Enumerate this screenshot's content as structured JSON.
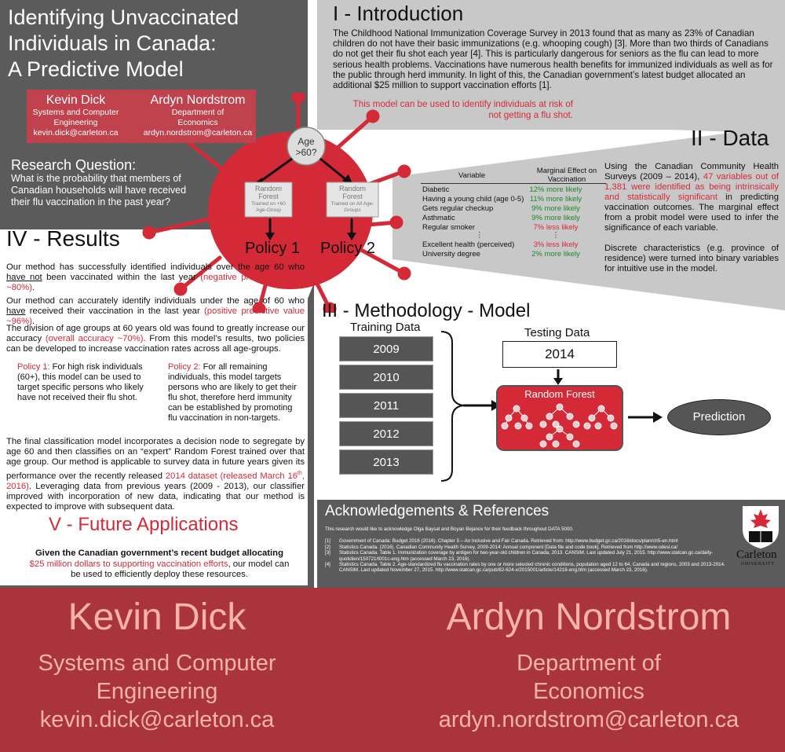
{
  "colors": {
    "accent_red": "#d42a38",
    "dark_gray": "#5b5b5b",
    "light_gray": "#c8c8c8",
    "footer_red": "#a9343c",
    "footer_text": "#f7b3a8",
    "green": "#1a8a2a"
  },
  "title": [
    "Identifying Unvaccinated",
    "Individuals in Canada:",
    "A Predictive Model"
  ],
  "authors": [
    {
      "name": "Kevin Dick",
      "dept": [
        "Systems and Computer",
        "Engineering"
      ],
      "email": "kevin.dick@carleton.ca"
    },
    {
      "name": "Ardyn Nordstrom",
      "dept": [
        "Department of",
        "Economics"
      ],
      "email": "ardyn.nordstrom@carleton.ca"
    }
  ],
  "research_question": {
    "title": "Research Question:",
    "text": "What is the probability that members of Canadian households will have received their flu vaccination in the past year?"
  },
  "intro": {
    "heading": "I - Introduction",
    "text": "The Childhood National Immunization Coverage Survey in 2013 found that as many as 23% of Canadian children do not have their basic immunizations (e.g. whooping cough) [3]. More than two thirds of Canadians do not get their flu shot each year [4]. This is particularly dangerous for seniors as the flu can lead to more serious health problems. Vaccinations have numerous health benefits for immunized individuals as well as for the public through herd immunity. In light of this, the Canadian government’s latest budget allocated an additional $25 million to support vaccination efforts [1].",
    "highlight": "This model can be used to identify individuals at risk of not getting a flu shot."
  },
  "virus": {
    "node": [
      "Age",
      ">60?"
    ],
    "left_box": {
      "title": [
        "Random",
        "Forest"
      ],
      "sub": [
        "Trained on +60",
        "Age-Group"
      ]
    },
    "right_box": {
      "title": [
        "Random",
        "Forest"
      ],
      "sub": [
        "Trained on All Age-",
        "Groups"
      ]
    },
    "policy1": "Policy 1",
    "policy2": "Policy 2"
  },
  "data": {
    "heading": "II - Data",
    "text_a": "Using the Canadian Community Health Surveys (2009 – 2014), ",
    "text_red": "47 variables out of 1,381 were identified as being intrinsically and statistically significant",
    "text_b": " in predicting vaccination outcomes. The marginal effect from a probit model were used to infer the significance of each variable.",
    "text_c": "Discrete characteristics (e.g. province of residence) were turned into binary variables for intuitive use in the model.",
    "table": {
      "col_variable": "Variable",
      "col_effect": "Marginal Effect on Vaccination",
      "rows": [
        {
          "variable": "Diabetic",
          "effect": "12% more likely",
          "sign": "pos"
        },
        {
          "variable": "Having a young child (age 0-5)",
          "effect": "11% more likely",
          "sign": "pos"
        },
        {
          "variable": "Gets regular checkup",
          "effect": "9% more likely",
          "sign": "pos"
        },
        {
          "variable": "Asthmatic",
          "effect": "9% more likely",
          "sign": "pos"
        },
        {
          "variable": "Regular smoker",
          "effect": "7% less likely",
          "sign": "neg"
        },
        {
          "variable": "⋮",
          "effect": "⋮",
          "sign": "dots"
        },
        {
          "variable": "Excellent health (perceived)",
          "effect": "3% less likely",
          "sign": "neg"
        },
        {
          "variable": "University degree",
          "effect": "2% more likely",
          "sign": "pos"
        }
      ]
    }
  },
  "results": {
    "heading": "IV - Results",
    "p1_a": "Our method has successfully identified individuals over the age 60 who ",
    "p1_u": "have not",
    "p1_b": " been vaccinated within the last year ",
    "p1_red": "(negative predictive value ~80%)",
    "p1_end": ".",
    "p2_a": "Our method can accurately identify individuals under the age of 60 who ",
    "p2_u": "have",
    "p2_b": " received their vaccination in the last year ",
    "p2_red": "(positive predictive value ~96%)",
    "p2_end": ".",
    "p3_a": "The division of age groups at 60 years old was found to greatly increase our accuracy ",
    "p3_red": "(overall accuracy ~70%)",
    "p3_b": ". From this model’s results, two policies can be developed to increase vaccination rates across all age-groups.",
    "policy1_label": "Policy 1:",
    "policy1_text": " For high risk individuals (60+), this model can be used to target specific persons who likely have not received their flu shot.",
    "policy2_label": "Policy 2:",
    "policy2_text": " For all remaining individuals, this model targets persons who are likely to get their flu shot, therefore herd immunity can be established by promoting flu vaccination in non-targets.",
    "p4_a": "The final classification model incorporates a decision node to segregate by age 60 and then classifies on an “expert” Random Forest trained over that age group. Our method is applicable to survey data in future years given its performance over the recently released ",
    "p4_red1": "2014 dataset (released March 16",
    "p4_sup": "th",
    "p4_red2": ", 2016)",
    "p4_b": ". Leveraging data from previous years (2009 - 2013), our classifier improved with incorporation of new data, indicating that our method is expected to improve with subsequent data."
  },
  "future": {
    "heading": "V - Future Applications",
    "bold": "Given the Canadian government’s recent budget allocating",
    "red": "$25 million dollars to supporting vaccination efforts",
    "rest": ", our model can be used  to efficiently deploy these resources."
  },
  "methodology": {
    "heading": "III - Methodology - Model",
    "training_label": "Training Data",
    "training_years": [
      "2009",
      "2010",
      "2011",
      "2012",
      "2013"
    ],
    "testing_label": "Testing Data",
    "testing_year": "2014",
    "rf_label": "Random Forest",
    "prediction": "Prediction"
  },
  "ack": {
    "heading": "Acknowledgements & References",
    "thanks": "This research would like to acknowledge Olga Baysal and Boyan Bejanov for their feedback throughout DATA 5000.",
    "refs": [
      {
        "num": "[1]",
        "text": "Government of Canada: Budget 2016 (2016). Chapter 5 – An Inclusive and Fair Canada. Retrieved from: http://www.budget.gc.ca/2016/docs/plan/ch5-en.html"
      },
      {
        "num": "[2]",
        "text": "Statistics Canada. (2016). Canadian Community Health Survey, 2009-2014: Annual component [Data file and code book]. Retrieved from http://www.odesi.ca/"
      },
      {
        "num": "[3]",
        "text": "Statistics Canada. Table 1. Immunization coverage by antigen for two-year-old children in Canada, 2013. CANSIM. Last updated July 21, 2015. http://www.statcan.gc.ca/daily-quotidien/150721/t001c-eng.htm (accessed March 23, 2016)."
      },
      {
        "num": "[4]",
        "text": "Statistics Canada. Table 2. Age-standardized flu vaccination rates by one or more selected chronic conditions, population aged 12 to 64, Canada and regions, 2003 and 2013-2014. CANSIM. Last updated November 27, 2015. http://www.statcan.gc.ca/pub/82-624-x/2015001/article/14218-eng.htm (accessed March 23, 2016)."
      }
    ],
    "logo_word": "Carleton",
    "logo_sub": "UNIVERSITY"
  }
}
